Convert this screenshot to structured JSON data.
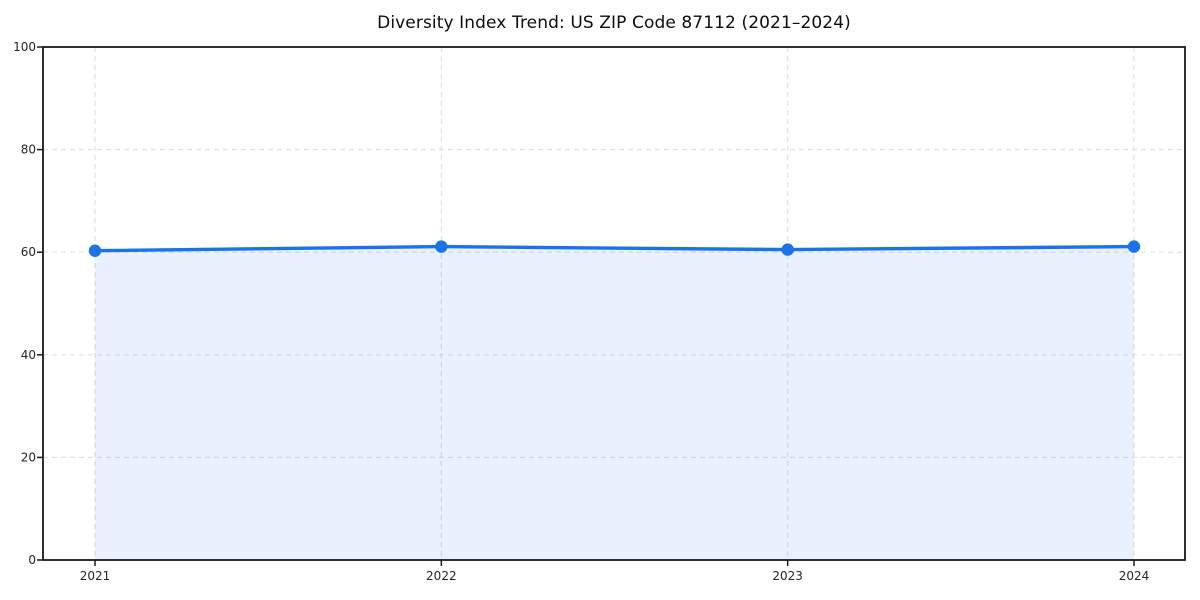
{
  "chart": {
    "title": "Diversity Index Trend: US ZIP Code 87112 (2021–2024)"
  },
  "chart_data": {
    "type": "area",
    "title": "Diversity Index Trend: US ZIP Code 87112 (2021–2024)",
    "categories": [
      "2021",
      "2022",
      "2023",
      "2024"
    ],
    "series": [
      {
        "name": "Diversity Index",
        "values": [
          60.3,
          61.1,
          60.5,
          61.1
        ]
      }
    ],
    "xlabel": "",
    "ylabel": "",
    "ylim": [
      0,
      100
    ],
    "yticks": [
      0,
      20,
      40,
      60,
      80,
      100
    ],
    "grid": true,
    "grid_style": "dashed",
    "legend_position": "none",
    "marker": "circle",
    "colors": {
      "line": "#1a73e8",
      "marker": "#1a73e8",
      "fill": "#1a73e8",
      "fill_opacity": 0.1,
      "grid": "#e1e1e1",
      "spine": "#1a1a1a",
      "tick": "#1a1a1a",
      "tick_label": "#262626",
      "title": "#0d0d0d",
      "plot_background": "#ffffff"
    }
  }
}
